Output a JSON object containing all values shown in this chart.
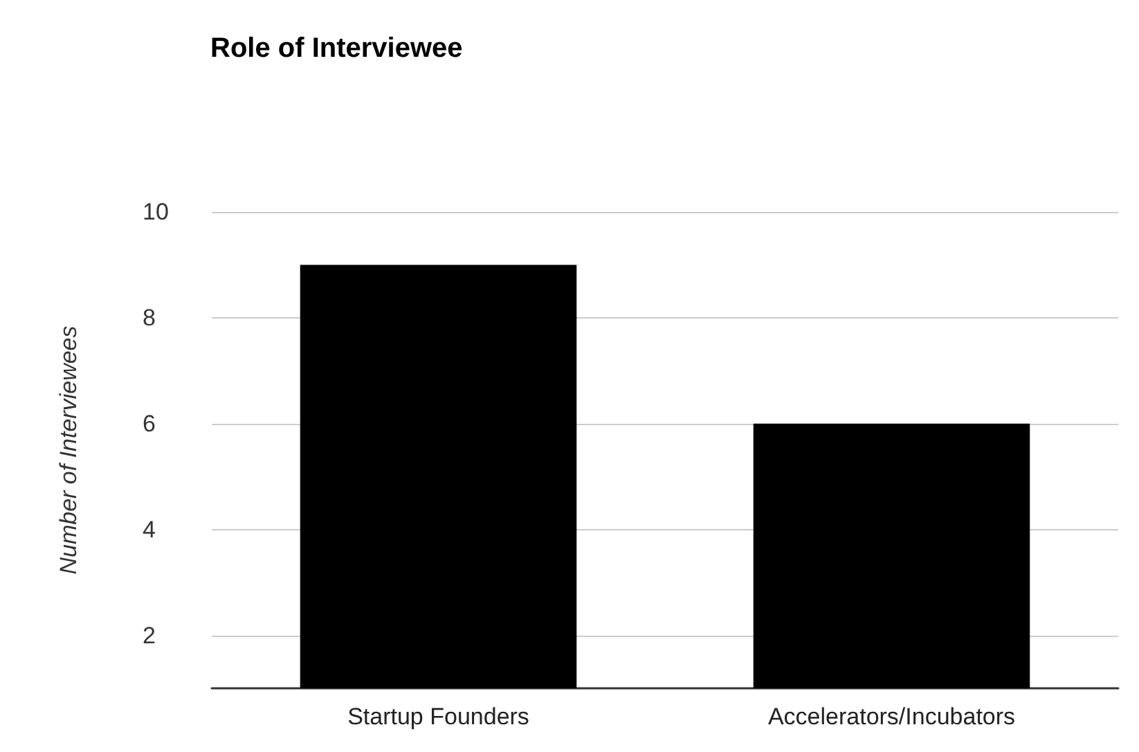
{
  "chart_data": {
    "type": "bar",
    "title": "Role of Interviewee",
    "ylabel": "Number of Interviewees",
    "categories": [
      "Startup Founders",
      "Accelerators/Incubators"
    ],
    "values": [
      9,
      6
    ],
    "color": "#000000",
    "ylim": [
      1,
      10
    ],
    "yticks": [
      2,
      4,
      6,
      8,
      10
    ],
    "grid": "y"
  }
}
